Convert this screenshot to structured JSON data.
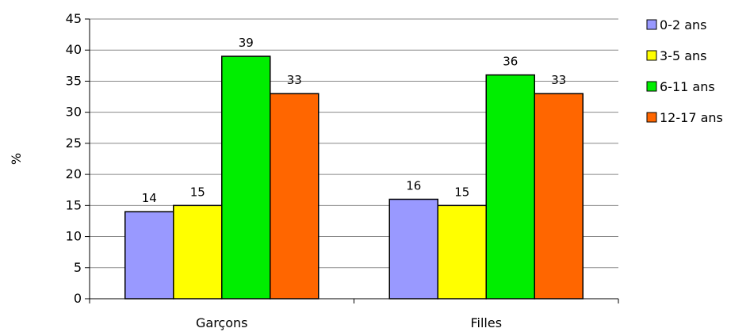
{
  "chart_data": {
    "type": "bar",
    "categories": [
      "Garçons",
      "Filles"
    ],
    "series": [
      {
        "name": "0-2 ans",
        "values": [
          14,
          16
        ],
        "color": "#9999ff"
      },
      {
        "name": "3-5 ans",
        "values": [
          15,
          15
        ],
        "color": "#ffff00"
      },
      {
        "name": "6-11 ans",
        "values": [
          39,
          36
        ],
        "color": "#00ee00"
      },
      {
        "name": "12-17 ans",
        "values": [
          33,
          33
        ],
        "color": "#ff6600"
      }
    ],
    "ylabel": "%",
    "ylim": [
      0,
      45
    ],
    "yticks": [
      0,
      5,
      10,
      15,
      20,
      25,
      30,
      35,
      40,
      45
    ],
    "grid": true,
    "legend_position": "right"
  }
}
